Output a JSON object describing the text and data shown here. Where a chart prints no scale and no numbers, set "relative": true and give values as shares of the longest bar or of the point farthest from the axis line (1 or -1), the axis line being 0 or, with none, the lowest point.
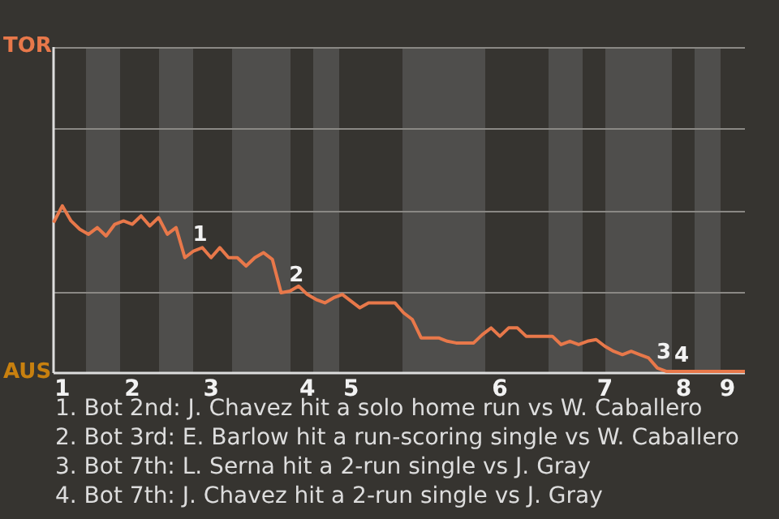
{
  "chart_data": {
    "type": "line",
    "relative": true,
    "line_style": "solid",
    "categories": [
      null,
      "1",
      null,
      null,
      null,
      null,
      null,
      null,
      null,
      "2",
      null,
      null,
      null,
      null,
      null,
      null,
      null,
      null,
      "3",
      null,
      null,
      null,
      null,
      null,
      null,
      null,
      null,
      null,
      null,
      "4",
      null,
      null,
      null,
      null,
      "5",
      null,
      null,
      null,
      null,
      null,
      null,
      null,
      null,
      null,
      null,
      null,
      null,
      null,
      null,
      null,
      null,
      "6",
      null,
      null,
      null,
      null,
      null,
      null,
      null,
      null,
      null,
      null,
      null,
      "7",
      null,
      null,
      null,
      null,
      null,
      null,
      null,
      null,
      "8",
      null,
      null,
      null,
      null,
      "9",
      null,
      null
    ],
    "series": [
      {
        "color": "#e8784a",
        "values": [
          0.9,
          1,
          0.91,
          0.86,
          0.83,
          0.87,
          0.82,
          0.89,
          0.91,
          0.89,
          0.94,
          0.88,
          0.93,
          0.83,
          0.87,
          0.69,
          0.73,
          0.75,
          0.69,
          0.75,
          0.69,
          0.69,
          0.64,
          0.69,
          0.72,
          0.68,
          0.48,
          0.49,
          0.52,
          0.47,
          0.44,
          0.42,
          0.45,
          0.47,
          0.43,
          0.39,
          0.42,
          0.42,
          0.42,
          0.42,
          0.36,
          0.32,
          0.21,
          0.21,
          0.21,
          0.19,
          0.18,
          0.18,
          0.18,
          0.23,
          0.27,
          0.22,
          0.27,
          0.27,
          0.22,
          0.22,
          0.22,
          0.22,
          0.17,
          0.19,
          0.17,
          0.19,
          0.2,
          0.16,
          0.13,
          0.11,
          0.13,
          0.11,
          0.09,
          0.03,
          0.01,
          0.01,
          0.01,
          0.01,
          0.01,
          0.01,
          0.01,
          0.01,
          0.01,
          0.01
        ]
      }
    ],
    "annotations": [
      {
        "text": "1",
        "y": 0.73
      },
      {
        "text": "2",
        "y": 0.49
      },
      {
        "text": "3",
        "y": 0.03
      },
      {
        "text": "4",
        "y": 0.01
      },
      "TOR",
      "AUS",
      "1. Bot 2nd: J. Chavez hit a solo home run vs W. Caballero",
      "2. Bot 3rd: E. Barlow hit a run-scoring single vs W. Caballero",
      "3. Bot 7th: L. Serna hit a 2-run single vs J. Gray",
      "4. Bot 7th: J. Chavez hit a 2-run single vs J. Gray"
    ]
  }
}
